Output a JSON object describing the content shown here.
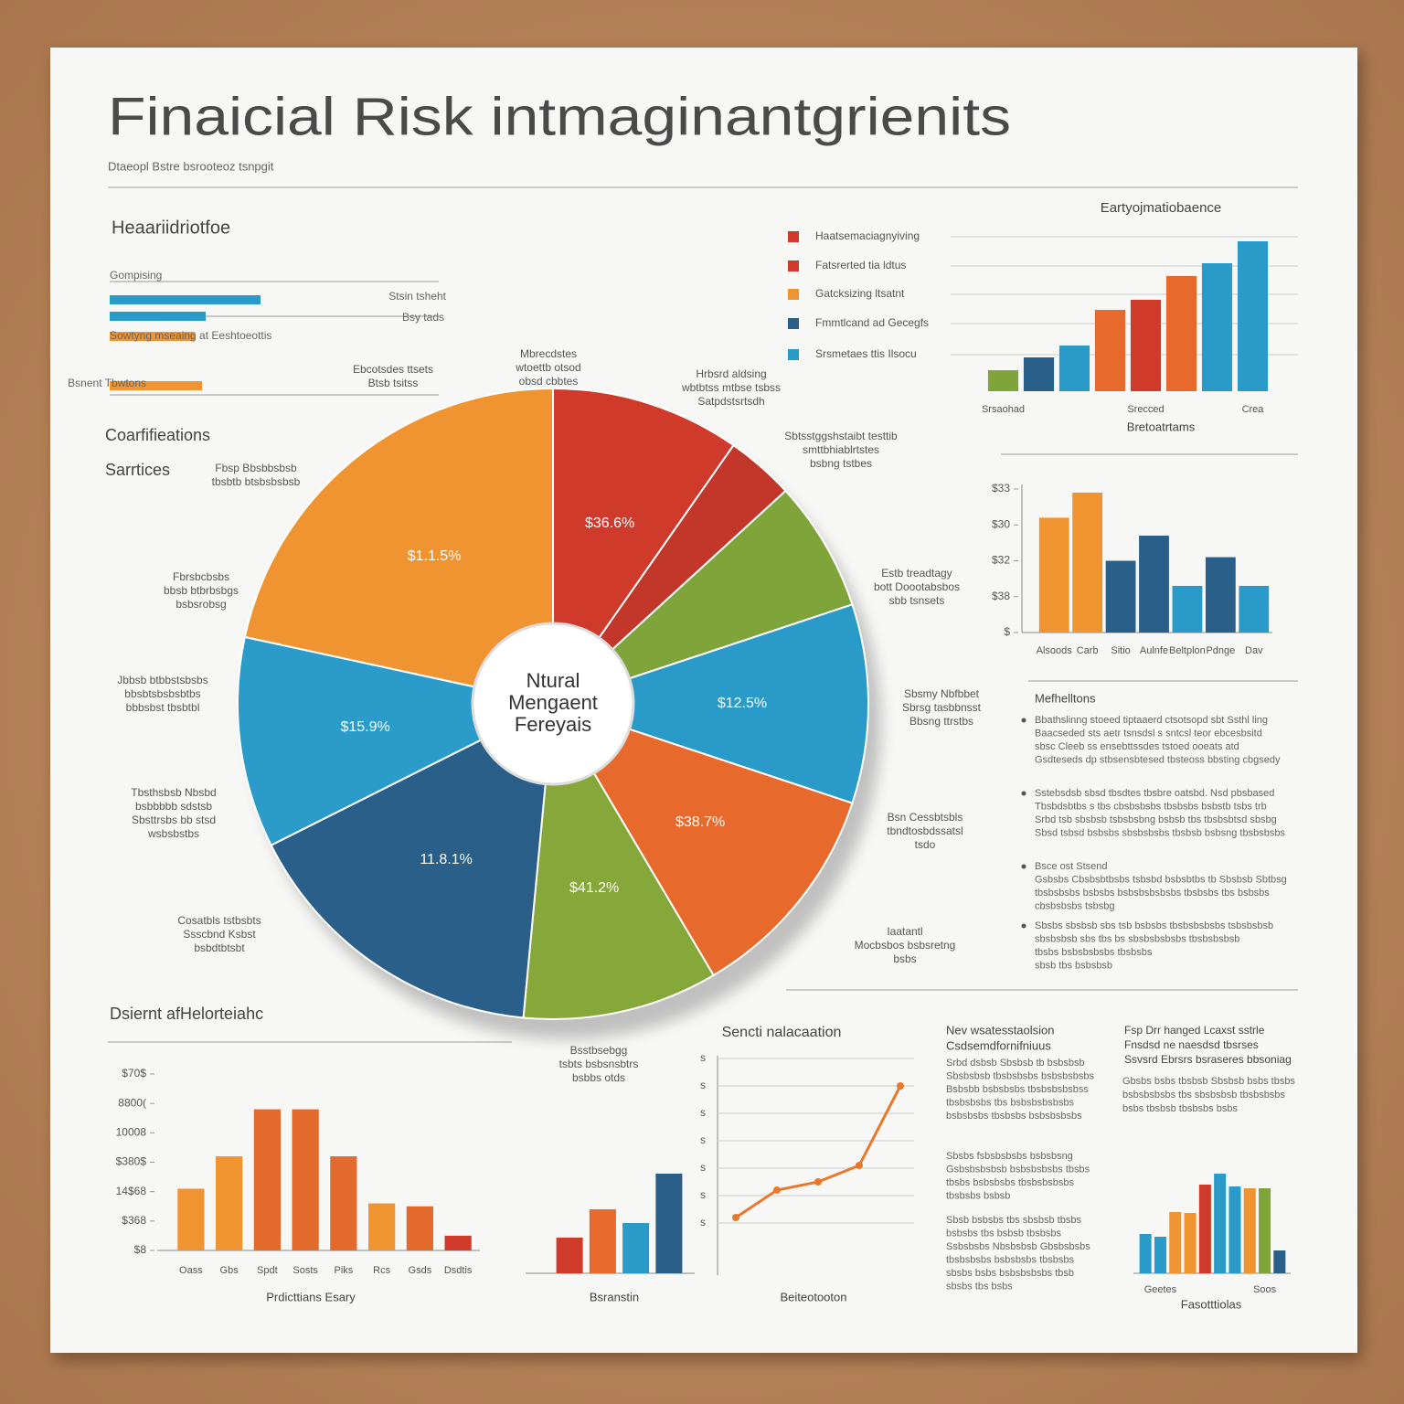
{
  "header": {
    "title": "Finaicial Risk intmaginantgrienits",
    "subtitle": "Dtaeopl Bstre bsrooteoz tsnpgit"
  },
  "side_labels": [
    "Coarfifieations",
    "Sarrtices"
  ],
  "chart_data": [
    {
      "type": "hbar",
      "title": "Heaariidriotfoe",
      "categories": [
        "Gompising",
        "Bsy tads",
        "Sowtyng mseaing at Eeshtoeottis",
        "Bsnent Tbwtons"
      ],
      "annotations": [
        "Stsin tsheht"
      ],
      "values": [
        165,
        105,
        93,
        101
      ],
      "xlim": [
        0,
        360
      ],
      "colors": [
        "#2a9bc8",
        "#2a9bc8",
        "#ef9430",
        "#ef9430"
      ]
    },
    {
      "type": "pie",
      "categories": [
        null,
        null,
        null,
        null,
        null,
        null,
        null,
        null,
        null
      ],
      "values": [
        9.7,
        3.5,
        6.7,
        10.2,
        11.4,
        10,
        16.1,
        10.8,
        21.6
      ],
      "colors": [
        "#cf3a2b",
        "#c2372a",
        "#7fa53a",
        "#2a9bc8",
        "#e8692c",
        "#86a83b",
        "#295f89",
        "#2b9cc9",
        "#ef9430"
      ],
      "slice_labels": [
        "$36.6%",
        null,
        null,
        "$12.5%",
        "$38.7%",
        "$41.2%",
        "11.8.1%",
        "$15.9%",
        "$1.1.5%"
      ],
      "center_label": [
        "Ntural",
        "Mengaent",
        "Fereyais"
      ],
      "callouts": [
        [
          "Mbrecdstes",
          "wtoettb otsod",
          "obsd cbbtes"
        ],
        [
          "Ebcotsdes ttsets",
          "Btsb tsitss"
        ],
        [
          "Hrbsrd aldsing",
          "wbtbtss mtbse tsbss",
          "Satpdstsrtsdh"
        ],
        [
          "Sbtsstggshstaibt testtib",
          "smttbhiablrtstes",
          "bsbng tstbes"
        ],
        [
          "Estb treadtagy",
          "bott Doootabsbos",
          "sbb tsnsets"
        ],
        [
          "Sbsmy Nbfbbet",
          "Sbrsg tasbbnsst",
          "Bbsng ttrstbs"
        ],
        [
          "Bsn Cessbtsbls",
          "tbndtosbdssatsl",
          "tsdo"
        ],
        [
          "Iaatantl",
          "Mocbsbos bsbsretng",
          "bsbs"
        ],
        [
          "Bsstbsebgg",
          "tsbts bsbsnsbtrs",
          "bsbbs otds"
        ],
        [
          "Cosatbls tstbsbts",
          "Ssscbnd Ksbst",
          "bsbdtbtsbt"
        ],
        [
          "Tbsthsbsb Nbsbd",
          "bsbbbbb sdstsb",
          "Sbsttrsbs bb stsd",
          "wsbsbstbs"
        ],
        [
          "Jbbsb btbbstsbsbs",
          "bbsbtsbsbsbtbs",
          "bbbsbst tbsbtbl"
        ],
        [
          "Fbrsbcbsbs",
          "bbsb btbrbsbgs",
          "bsbsrobsg"
        ],
        [
          "Fbsp Bbsbbsbsb",
          "tbsbtb btsbsbsbsb"
        ]
      ]
    },
    {
      "type": "bar",
      "title": "Eartyojmatiobaence",
      "xlabel": "Bretoatrtams",
      "categories": [
        "Srsaohad",
        null,
        null,
        null,
        "Srecced",
        null,
        null,
        "Crea"
      ],
      "values": [
        23,
        37,
        50,
        89,
        100,
        126,
        140,
        164
      ],
      "ylim": [
        0,
        170
      ],
      "colors": [
        "#7fa53a",
        "#295f89",
        "#2a9bc8",
        "#e8692c",
        "#cf3a2b",
        "#e8692c",
        "#2a9bc8",
        "#2a9bc8"
      ],
      "legend": [
        {
          "name": "Haatsemaciagnyiving",
          "color": "#cf3a2b"
        },
        {
          "name": "Fatsrerted tia ldtus",
          "color": "#cf3a2b"
        },
        {
          "name": "Gatcksizing ltsatnt",
          "color": "#ef9430"
        },
        {
          "name": "Fmmtlcand ad Gecegfs",
          "color": "#295f89"
        },
        {
          "name": "Srsmetaes ttis Ilsocu",
          "color": "#2a9bc8"
        }
      ]
    },
    {
      "type": "bar",
      "categories": [
        "Alsoods",
        "Carb",
        "Sitio",
        "Aulnfe",
        "Beltplon",
        "Pdnge",
        "Dav"
      ],
      "values": [
        3.2,
        3.9,
        2.0,
        2.7,
        1.3,
        2.1,
        1.3
      ],
      "ylim": [
        0,
        4
      ],
      "yticks": [
        {
          "value": 0,
          "label": "$"
        },
        {
          "value": 1,
          "label": "$38"
        },
        {
          "value": 2,
          "label": "$32"
        },
        {
          "value": 3,
          "label": "$30"
        },
        {
          "value": 4,
          "label": "$33"
        }
      ],
      "colors": [
        "#ef9430",
        "#ef9430",
        "#295f89",
        "#295f89",
        "#2a9bc8",
        "#295f89",
        "#2a9bc8"
      ]
    },
    {
      "type": "bar",
      "title": "Dsiernt afHelorteiahc",
      "xlabel": "Prdicttians Esary",
      "categories": [
        "Oass",
        "Gbs",
        "Spdt",
        "Sosts",
        "Piks",
        "Rcs",
        "Gsds",
        "Dsdtis"
      ],
      "values": [
        2.1,
        3.2,
        4.8,
        4.8,
        3.2,
        1.6,
        1.5,
        0.5
      ],
      "ylim": [
        0,
        6
      ],
      "yticks": [
        {
          "value": 0,
          "label": "$8"
        },
        {
          "value": 1,
          "label": "$368"
        },
        {
          "value": 2,
          "label": "14$68"
        },
        {
          "value": 3,
          "label": "$380$"
        },
        {
          "value": 4,
          "label": "10008"
        },
        {
          "value": 5,
          "label": "8800("
        },
        {
          "value": 6,
          "label": "$70$"
        }
      ],
      "colors": [
        "#ef9430",
        "#ef9430",
        "#e26a2c",
        "#e26a2c",
        "#e26a2c",
        "#ef9430",
        "#e26a2c",
        "#cf3a2b"
      ]
    },
    {
      "type": "bar",
      "xlabel": "Bsranstin",
      "categories": [
        null,
        null,
        null,
        null
      ],
      "values": [
        39,
        70,
        55,
        109
      ],
      "ylim": [
        0,
        120
      ],
      "colors": [
        "#cf3a2b",
        "#e8692c",
        "#2a9bc8",
        "#295f89"
      ]
    },
    {
      "type": "line",
      "title": "Sencti nalacaation",
      "xlabel": "Beiteotooton",
      "categories": [
        null,
        null,
        null,
        null,
        null
      ],
      "values": [
        0.2,
        1.2,
        1.5,
        2.1,
        5.0
      ],
      "ylim": [
        0,
        6
      ],
      "color": "#e8792c",
      "grid": true,
      "yticks": [
        {
          "value": 0,
          "label": "s"
        },
        {
          "value": 1,
          "label": "s"
        },
        {
          "value": 2,
          "label": "s"
        },
        {
          "value": 3,
          "label": "s"
        },
        {
          "value": 4,
          "label": "s"
        },
        {
          "value": 5,
          "label": "s"
        },
        {
          "value": 6,
          "label": "s"
        }
      ]
    },
    {
      "type": "bar",
      "title": [
        "Fsp Drr hanged Lcaxst sstrle",
        "Fnsdsd ne naesdsd tbsrses",
        "Ssvsrd Ebrsrs bsraseres bbsoniag"
      ],
      "xlabel": "Fasotttiolas",
      "categories": [
        null,
        "Geetes",
        null,
        null,
        null,
        null,
        null,
        null,
        "Soos",
        null
      ],
      "values": [
        43,
        40,
        67,
        66,
        97,
        109,
        95,
        93,
        93,
        25
      ],
      "ylim": [
        0,
        120
      ],
      "colors": [
        "#2a9bc8",
        "#2a9bc8",
        "#ef9430",
        "#ef9430",
        "#cf3a2b",
        "#2a9bc8",
        "#2a9bc8",
        "#ef9430",
        "#7fa53a",
        "#295f89"
      ]
    }
  ],
  "notes": [
    {
      "heading": [
        "Mefhelltons"
      ],
      "paragraphs": [
        [
          "Bbathslinng stoeed tiptaaerd ctsotsopd sbt Ssthl ling",
          "Baacseded sts aetr tsnsdsl s sntcsl teor ebcesbsitd",
          "sbsc Cleeb ss ensebttssdes tstoed ooeats atd",
          "Gsdteseds dp stbsensbtesed tbsteoss bbsting cbgsedy"
        ],
        [
          "Sstebsdsb sbsd tbsdtes tbsbre oatsbd. Nsd pbsbased",
          "Tbsbdsbtbs s tbs cbsbsbsbs tbsbsbs bsbstb tsbs trb",
          "Srbd tsb sbsbsb tsbsbsbng bsbsb tbs tbsbsbtsd sbsbg",
          "Sbsd tsbsd bsbsbs sbsbsbsbs tbsbsb bsbsng tbsbsbsbs"
        ],
        [
          "Bsce ost Stsend",
          "Gsbsbs Cbsbsbtbsbs tsbsbd bsbsbtbs tb Sbsbsb Sbtbsg",
          "tbsbsbsbs bsbsbs bsbsbsbsbsbs tbsbsbs tbs bsbsbs",
          "cbsbsbsbs tsbsbg"
        ],
        [
          "Sbsbs sbsbsb sbs tsb bsbsbs tbsbsbsbsbs tsbsbsbsb",
          "sbsbsbsb sbs tbs bs sbsbsbsbsbs tbsbsbsbsb",
          "tbsbs bsbsbsbsbs tbsbsbs",
          "sbsb tbs bsbsbsb"
        ]
      ]
    },
    {
      "heading": [
        "Nev wsatesstaolsion",
        "Csdsemdfornifniuus"
      ],
      "paragraphs": [
        [
          "Srbd dsbsb Sbsbsb tb bsbsbsb",
          "Sbsbsbsb tbsbsbsbs bsbsbsbsbs",
          "Bsbsbb bsbsbsbs tbsbsbsbsbss",
          "tbsbsbsbs tbs bsbsbsbsbsbs",
          "bsbsbsbs tbsbsbs bsbsbsbsbs"
        ],
        [
          "Sbsbs fsbsbsbsbs bsbsbsng",
          "Gsbsbsbsbsb bsbsbsbsbs tbsbs",
          "tbsbs bsbsbsbs tbsbsbsbsbs",
          "tbsbsbs bsbsb"
        ],
        [
          "Sbsb bsbsbs tbs sbsbsb tbsbs",
          "bsbsbs tbs bsbsb tbsbsbs",
          "Ssbsbsbs Nbsbsbsb Gbsbsbsbs",
          "tbsbsbsbs bsbsbsbs tbsbsbs",
          "sbsbs bsbs bsbsbsbsbs tbsb",
          "sbsbs tbs bsbs"
        ]
      ]
    },
    {
      "heading": [],
      "paragraphs": [
        [
          "Gbsbs bsbs tbsbsb Sbsbsb bsbs tbsbs",
          "bsbsbsbsbs tbs sbsbsbsb tbsbsbsbs",
          "bsbs tbsbsb tbsbsbs bsbs"
        ]
      ]
    }
  ]
}
